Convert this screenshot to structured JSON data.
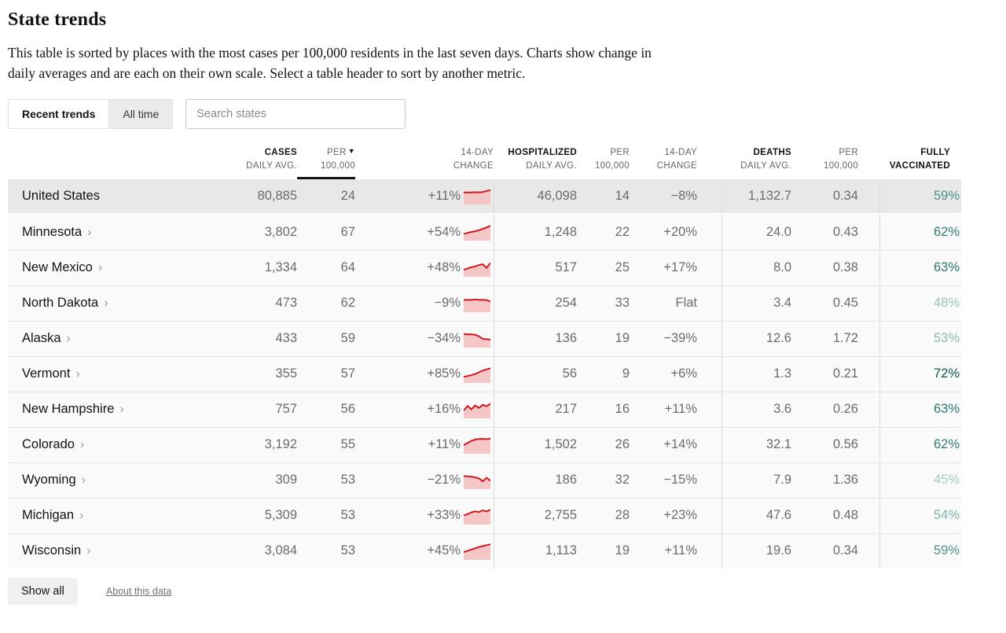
{
  "page": {
    "title": "State trends",
    "description": "This table is sorted by places with the most cases per 100,000 residents in the last seven days. Charts show change in daily averages and are each on their own scale. Select a table header to sort by another metric."
  },
  "tabs": [
    {
      "label": "Recent trends",
      "active": true
    },
    {
      "label": "All time",
      "active": false
    }
  ],
  "search": {
    "placeholder": "Search states"
  },
  "table": {
    "headers": [
      {
        "line1": "CASES",
        "line2": "DAILY AVG.",
        "bold1": true
      },
      {
        "line1": "PER",
        "line2": "100,000",
        "sorted": true,
        "arrow": "▼"
      },
      {
        "line1": "14-DAY",
        "line2": "CHANGE"
      },
      {
        "line1": "HOSPITALIZED",
        "line2": "DAILY AVG.",
        "bold1": true
      },
      {
        "line1": "PER",
        "line2": "100,000"
      },
      {
        "line1": "14-DAY",
        "line2": "CHANGE"
      },
      {
        "line1": "DEATHS",
        "line2": "DAILY AVG.",
        "bold1": true
      },
      {
        "line1": "PER",
        "line2": "100,000"
      },
      {
        "line1": "FULLY",
        "line2": "VACCINATED",
        "bold1": true,
        "bold2": true
      }
    ],
    "chevron": "›",
    "rows": [
      {
        "name": "United States",
        "is_total": true,
        "cases": "80,885",
        "cases_per": "24",
        "cases_change": "+11%",
        "spark": [
          0.32,
          0.3,
          0.31,
          0.29,
          0.3,
          0.28,
          0.22,
          0.18
        ],
        "hosp": "46,098",
        "hosp_per": "14",
        "hosp_change": "−8%",
        "deaths": "1,132.7",
        "deaths_per": "0.34",
        "vaccinated": "59%",
        "vax_color": "#4c928c"
      },
      {
        "name": "Minnesota",
        "is_total": false,
        "cases": "3,802",
        "cases_per": "67",
        "cases_change": "+54%",
        "spark": [
          0.62,
          0.55,
          0.5,
          0.46,
          0.4,
          0.32,
          0.24,
          0.14
        ],
        "hosp": "1,248",
        "hosp_per": "22",
        "hosp_change": "+20%",
        "deaths": "24.0",
        "deaths_per": "0.43",
        "vaccinated": "62%",
        "vax_color": "#2e7a72"
      },
      {
        "name": "New Mexico",
        "is_total": false,
        "cases": "1,334",
        "cases_per": "64",
        "cases_change": "+48%",
        "spark": [
          0.6,
          0.52,
          0.45,
          0.4,
          0.32,
          0.28,
          0.48,
          0.2
        ],
        "hosp": "517",
        "hosp_per": "25",
        "hosp_change": "+17%",
        "deaths": "8.0",
        "deaths_per": "0.38",
        "vaccinated": "63%",
        "vax_color": "#2b766e"
      },
      {
        "name": "North Dakota",
        "is_total": false,
        "cases": "473",
        "cases_per": "62",
        "cases_change": "−9%",
        "spark": [
          0.3,
          0.28,
          0.29,
          0.27,
          0.29,
          0.28,
          0.3,
          0.38
        ],
        "hosp": "254",
        "hosp_per": "33",
        "hosp_change": "Flat",
        "deaths": "3.4",
        "deaths_per": "0.45",
        "vaccinated": "48%",
        "vax_color": "#97c4b8"
      },
      {
        "name": "Alaska",
        "is_total": false,
        "cases": "433",
        "cases_per": "59",
        "cases_change": "−34%",
        "spark": [
          0.22,
          0.24,
          0.23,
          0.26,
          0.35,
          0.5,
          0.52,
          0.53
        ],
        "hosp": "136",
        "hosp_per": "19",
        "hosp_change": "−39%",
        "deaths": "12.6",
        "deaths_per": "1.72",
        "vaccinated": "53%",
        "vax_color": "#87bab0"
      },
      {
        "name": "Vermont",
        "is_total": false,
        "cases": "355",
        "cases_per": "57",
        "cases_change": "+85%",
        "spark": [
          0.65,
          0.6,
          0.55,
          0.48,
          0.38,
          0.28,
          0.22,
          0.15
        ],
        "hosp": "56",
        "hosp_per": "9",
        "hosp_change": "+6%",
        "deaths": "1.3",
        "deaths_per": "0.21",
        "vaccinated": "72%",
        "vax_color": "#10554b"
      },
      {
        "name": "New Hampshire",
        "is_total": false,
        "cases": "757",
        "cases_per": "56",
        "cases_change": "+16%",
        "spark": [
          0.55,
          0.28,
          0.48,
          0.25,
          0.4,
          0.22,
          0.3,
          0.15
        ],
        "hosp": "217",
        "hosp_per": "16",
        "hosp_change": "+11%",
        "deaths": "3.6",
        "deaths_per": "0.26",
        "vaccinated": "63%",
        "vax_color": "#2b766e"
      },
      {
        "name": "Colorado",
        "is_total": false,
        "cases": "3,192",
        "cases_per": "55",
        "cases_change": "+11%",
        "spark": [
          0.5,
          0.38,
          0.26,
          0.18,
          0.15,
          0.14,
          0.16,
          0.13
        ],
        "hosp": "1,502",
        "hosp_per": "26",
        "hosp_change": "+14%",
        "deaths": "32.1",
        "deaths_per": "0.56",
        "vaccinated": "62%",
        "vax_color": "#2e7a72"
      },
      {
        "name": "Wyoming",
        "is_total": false,
        "cases": "309",
        "cases_per": "53",
        "cases_change": "−21%",
        "spark": [
          0.25,
          0.26,
          0.28,
          0.32,
          0.38,
          0.55,
          0.35,
          0.52
        ],
        "hosp": "186",
        "hosp_per": "32",
        "hosp_change": "−15%",
        "deaths": "7.9",
        "deaths_per": "1.36",
        "vaccinated": "45%",
        "vax_color": "#a5cdc2"
      },
      {
        "name": "Michigan",
        "is_total": false,
        "cases": "5,309",
        "cases_per": "53",
        "cases_change": "+33%",
        "spark": [
          0.48,
          0.4,
          0.3,
          0.24,
          0.28,
          0.18,
          0.24,
          0.15
        ],
        "hosp": "2,755",
        "hosp_per": "28",
        "hosp_change": "+23%",
        "deaths": "47.6",
        "deaths_per": "0.48",
        "vaccinated": "54%",
        "vax_color": "#7fb5ab"
      },
      {
        "name": "Wisconsin",
        "is_total": false,
        "cases": "3,084",
        "cases_per": "53",
        "cases_change": "+45%",
        "spark": [
          0.55,
          0.48,
          0.4,
          0.33,
          0.26,
          0.2,
          0.15,
          0.1
        ],
        "hosp": "1,113",
        "hosp_per": "19",
        "hosp_change": "+11%",
        "deaths": "19.6",
        "deaths_per": "0.34",
        "vaccinated": "59%",
        "vax_color": "#4c928c"
      }
    ]
  },
  "footer": {
    "show_all": "Show all",
    "about": "About this data"
  },
  "colors": {
    "spark_line": "#cf1a20",
    "spark_fill": "#f4c6c6",
    "sorted_underline": "#121212",
    "total_row_bg": "#e8e8e8",
    "row_bg": "#fafafa"
  }
}
